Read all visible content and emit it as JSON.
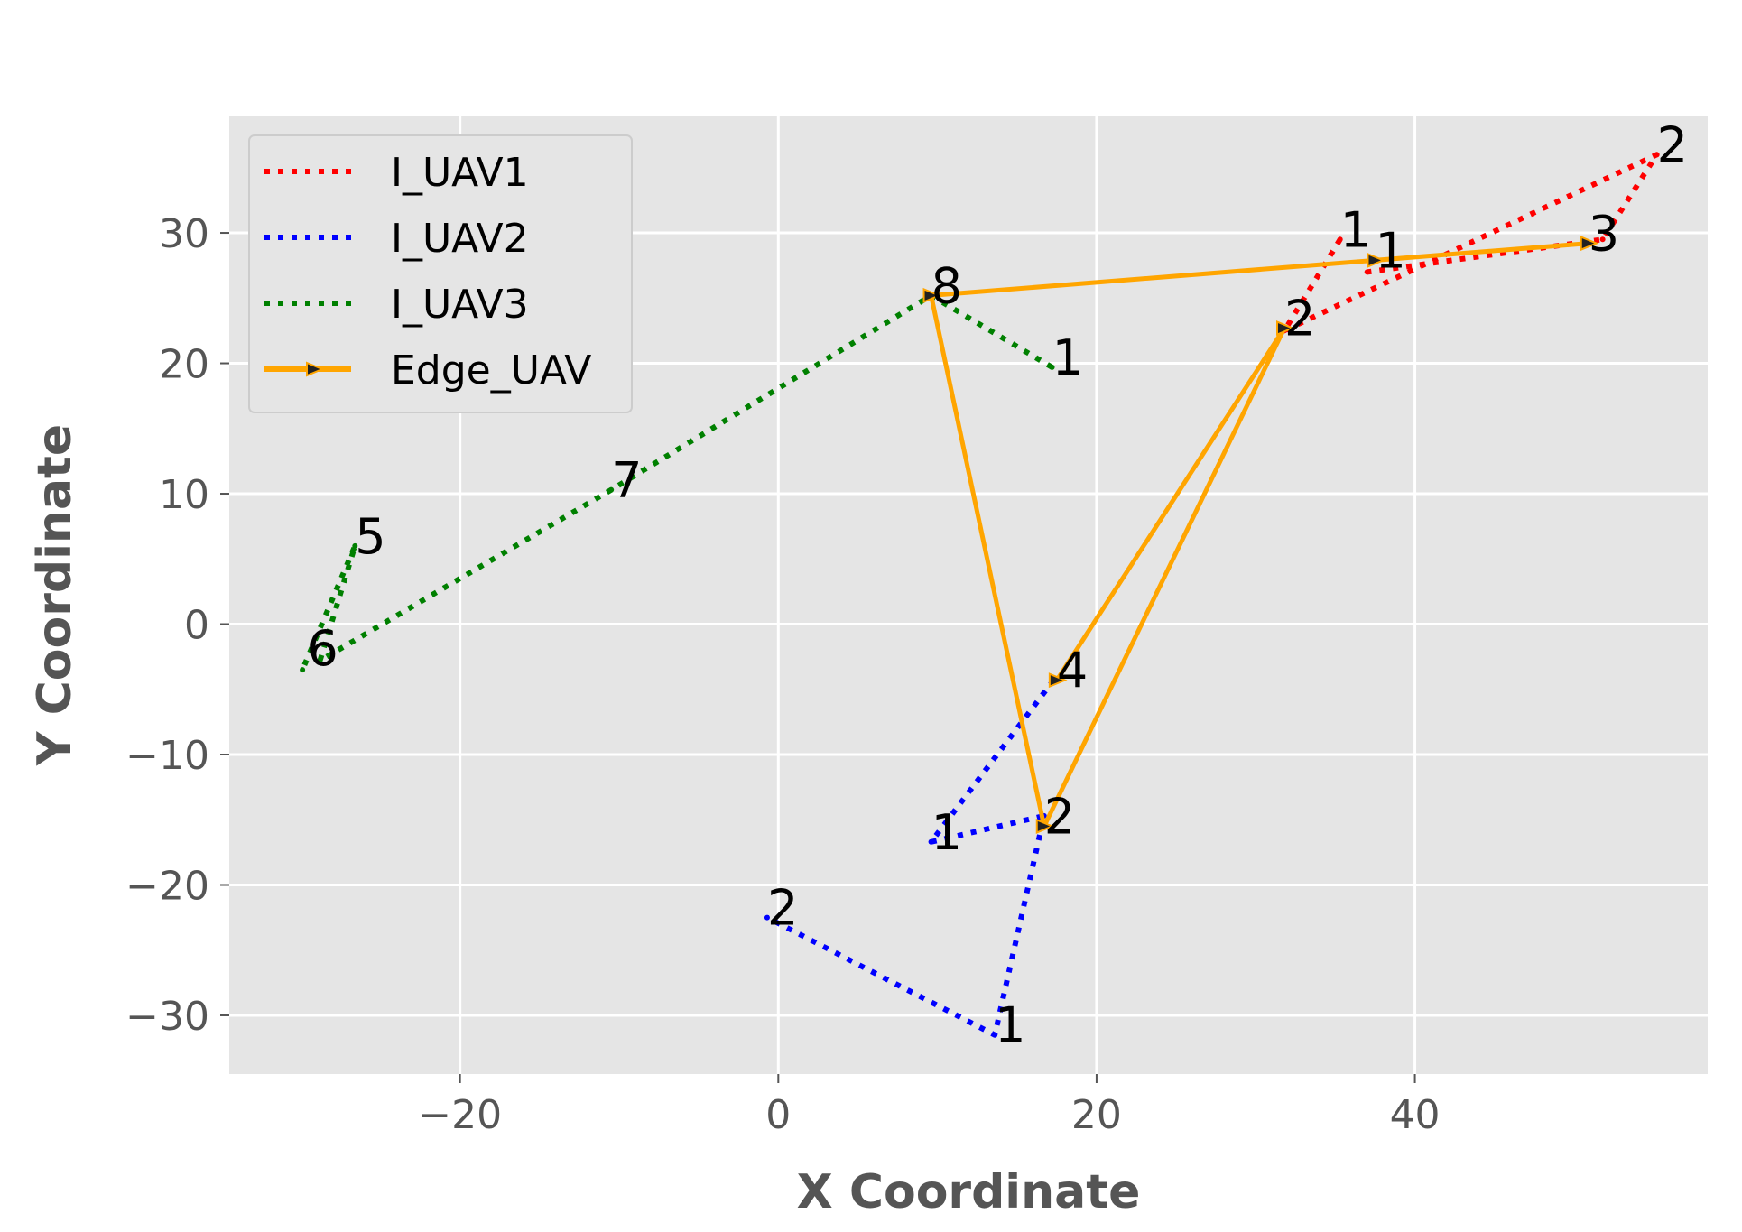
{
  "chart_data": {
    "type": "line",
    "title": "",
    "xlabel": "X Coordinate",
    "ylabel": "Y Coordinate",
    "xlim": [
      -34.5,
      58.4
    ],
    "ylim": [
      -34.5,
      39.0
    ],
    "xticks": [
      -20,
      0,
      20,
      40
    ],
    "yticks": [
      -30,
      -20,
      -10,
      0,
      10,
      20,
      30
    ],
    "xtick_labels": [
      "−20",
      "0",
      "20",
      "40"
    ],
    "ytick_labels": [
      "−30",
      "−20",
      "−10",
      "0",
      "10",
      "20",
      "30"
    ],
    "grid": true,
    "legend_position": "top-left",
    "series": [
      {
        "name": "I_UAV1",
        "color": "#ff0000",
        "style": "dotted",
        "points": [
          [
            35.3,
            29.5
          ],
          [
            31.8,
            22.5
          ],
          [
            55.2,
            36.0
          ],
          [
            51.8,
            29.5
          ],
          [
            37.0,
            27.0
          ]
        ],
        "labels": [
          {
            "x": 35.3,
            "y": 29.5,
            "text": "1"
          },
          {
            "x": 55.2,
            "y": 36.0,
            "text": "2"
          }
        ]
      },
      {
        "name": "I_UAV2",
        "color": "#0000ff",
        "style": "dotted",
        "points": [
          [
            17.3,
            -4.3
          ],
          [
            9.6,
            -16.7
          ],
          [
            16.7,
            -14.7
          ],
          [
            13.6,
            -31.5
          ],
          [
            -0.7,
            -22.5
          ]
        ],
        "labels": [
          {
            "x": 9.6,
            "y": -16.7,
            "text": "1"
          },
          {
            "x": 13.6,
            "y": -31.5,
            "text": "1"
          },
          {
            "x": -0.7,
            "y": -22.5,
            "text": "2"
          }
        ]
      },
      {
        "name": "I_UAV3",
        "color": "#008000",
        "style": "dotted",
        "points": [
          [
            17.2,
            19.7
          ],
          [
            9.6,
            25.2
          ],
          [
            -10.5,
            10.3
          ],
          [
            -28.8,
            -2.8
          ],
          [
            -26.6,
            6.0
          ],
          [
            -29.9,
            -3.5
          ]
        ],
        "labels": [
          {
            "x": 17.2,
            "y": 19.7,
            "text": "1"
          },
          {
            "x": -26.6,
            "y": 6.0,
            "text": "5"
          },
          {
            "x": -29.6,
            "y": -2.6,
            "text": "6"
          },
          {
            "x": -10.5,
            "y": 10.3,
            "text": "7"
          },
          {
            "x": 9.6,
            "y": 25.2,
            "text": "8"
          }
        ]
      },
      {
        "name": "Edge_UAV",
        "color": "#ffa500",
        "style": "solid",
        "points": [
          [
            37.5,
            27.9
          ],
          [
            50.9,
            29.2
          ],
          [
            9.6,
            25.2
          ],
          [
            16.7,
            -15.5
          ],
          [
            31.8,
            22.7
          ],
          [
            17.5,
            -4.3
          ]
        ],
        "labels": [
          {
            "x": 37.5,
            "y": 27.9,
            "text": "1"
          },
          {
            "x": 31.8,
            "y": 22.7,
            "text": "2"
          },
          {
            "x": 50.9,
            "y": 29.2,
            "text": "3"
          },
          {
            "x": 17.5,
            "y": -4.3,
            "text": "4"
          },
          {
            "x": 16.7,
            "y": -15.5,
            "text": "2"
          }
        ]
      }
    ]
  }
}
